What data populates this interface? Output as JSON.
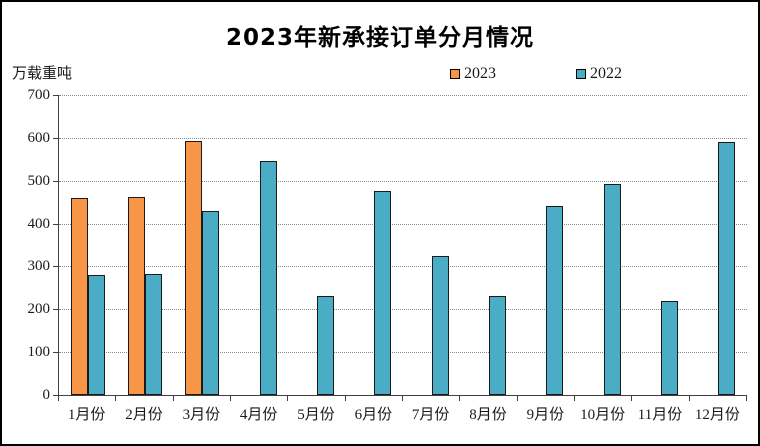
{
  "chart": {
    "title": "2023年新承接订单分月情况",
    "unit_label": "万载重吨"
  },
  "chart_data": {
    "type": "bar",
    "title": "2023年新承接订单分月情况",
    "ylabel": "万载重吨",
    "ylim": [
      0,
      700
    ],
    "ytick_interval": 100,
    "grid": true,
    "legend_position": "top-right",
    "categories": [
      "1月份",
      "2月份",
      "3月份",
      "4月份",
      "5月份",
      "6月份",
      "7月份",
      "8月份",
      "9月份",
      "10月份",
      "11月份",
      "12月份"
    ],
    "series": [
      {
        "name": "2023",
        "color": "#F79646",
        "values": [
          460,
          462,
          593,
          null,
          null,
          null,
          null,
          null,
          null,
          null,
          null,
          null
        ]
      },
      {
        "name": "2022",
        "color": "#4BACC6",
        "values": [
          280,
          282,
          430,
          547,
          230,
          477,
          325,
          232,
          440,
          493,
          220,
          591
        ]
      }
    ]
  }
}
